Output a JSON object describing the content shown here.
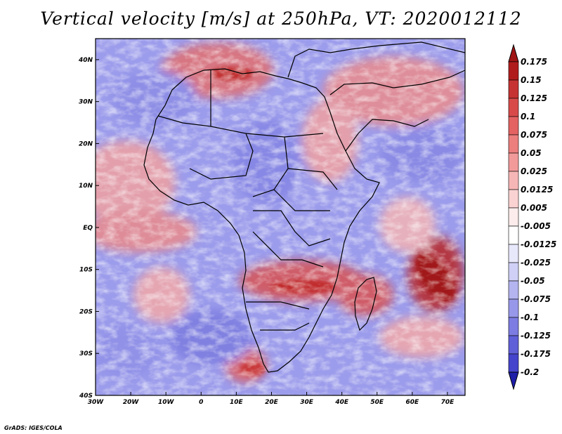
{
  "title": "Vertical velocity [m/s] at 250hPa, VT: 2020012112",
  "credit": "GrADS: IGES/COLA",
  "map": {
    "lon_range": [
      -30,
      75
    ],
    "lat_range": [
      -40,
      45
    ],
    "lon_ticks": [
      {
        "value": -30,
        "label": "30W"
      },
      {
        "value": -20,
        "label": "20W"
      },
      {
        "value": -10,
        "label": "10W"
      },
      {
        "value": 0,
        "label": "0"
      },
      {
        "value": 10,
        "label": "10E"
      },
      {
        "value": 20,
        "label": "20E"
      },
      {
        "value": 30,
        "label": "30E"
      },
      {
        "value": 40,
        "label": "40E"
      },
      {
        "value": 50,
        "label": "50E"
      },
      {
        "value": 60,
        "label": "60E"
      },
      {
        "value": 70,
        "label": "70E"
      }
    ],
    "lat_ticks": [
      {
        "value": 40,
        "label": "40N"
      },
      {
        "value": 30,
        "label": "30N"
      },
      {
        "value": 20,
        "label": "20N"
      },
      {
        "value": 10,
        "label": "10N"
      },
      {
        "value": 0,
        "label": "EQ"
      },
      {
        "value": -10,
        "label": "10S"
      },
      {
        "value": -20,
        "label": "20S"
      },
      {
        "value": -30,
        "label": "30S"
      },
      {
        "value": -40,
        "label": "40S"
      }
    ]
  },
  "colorbar": {
    "levels": [
      {
        "label": "0.175",
        "color": "#b01c1c"
      },
      {
        "label": "0.15",
        "color": "#c63232"
      },
      {
        "label": "0.125",
        "color": "#d84a4a"
      },
      {
        "label": "0.1",
        "color": "#e46262"
      },
      {
        "label": "0.075",
        "color": "#ec7e7e"
      },
      {
        "label": "0.05",
        "color": "#f29a9a"
      },
      {
        "label": "0.025",
        "color": "#f7b6b6"
      },
      {
        "label": "0.0125",
        "color": "#fbd2d2"
      },
      {
        "label": "0.005",
        "color": "#fdecec"
      },
      {
        "label": "-0.005",
        "color": "#ffffff"
      },
      {
        "label": "-0.0125",
        "color": "#e8e8fb"
      },
      {
        "label": "-0.025",
        "color": "#d0d0f6"
      },
      {
        "label": "-0.05",
        "color": "#b4b4f0"
      },
      {
        "label": "-0.075",
        "color": "#9898ea"
      },
      {
        "label": "-0.1",
        "color": "#7c7ce2"
      },
      {
        "label": "-0.125",
        "color": "#6060d8"
      },
      {
        "label": "-0.175",
        "color": "#4444cc"
      },
      {
        "label": "-0.2",
        "color": "#2a2ab8"
      }
    ],
    "top_cap_color": "#a01414",
    "bottom_cap_color": "#1e1ea8"
  }
}
